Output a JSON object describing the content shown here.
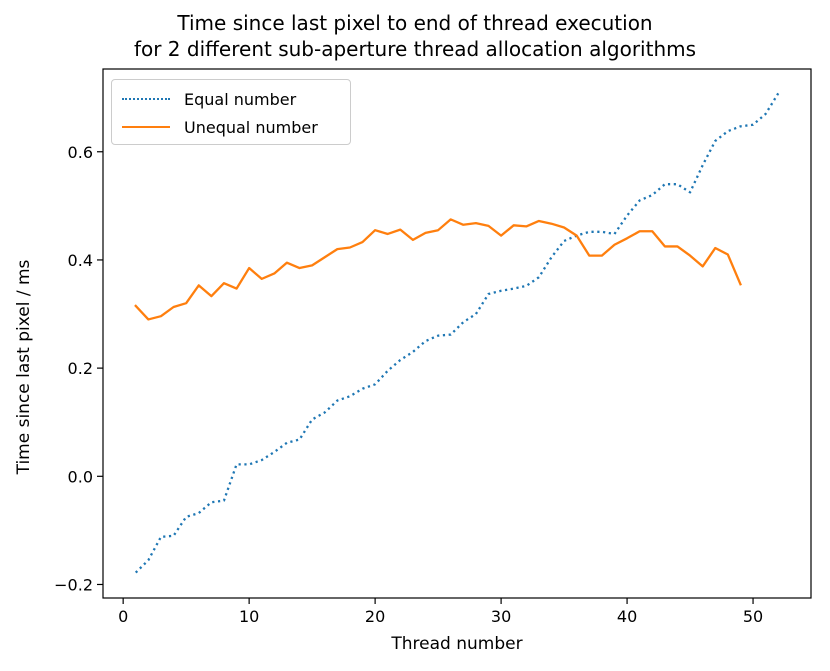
{
  "title_line1": "Time since last pixel to end of thread execution",
  "title_line2": "for 2 different sub-aperture thread allocation algorithms",
  "chart_data": {
    "type": "line",
    "title": "Time since last pixel to end of thread execution\nfor 2 different sub-aperture thread allocation algorithms",
    "xlabel": "Thread number",
    "ylabel": "Time since last pixel / ms",
    "xlim": [
      -1.6,
      54.6
    ],
    "ylim": [
      -0.225,
      0.753
    ],
    "xticks": [
      0,
      10,
      20,
      30,
      40,
      50
    ],
    "xtick_labels": [
      "0",
      "10",
      "20",
      "30",
      "40",
      "50"
    ],
    "yticks": [
      -0.2,
      0.0,
      0.2,
      0.4,
      0.6
    ],
    "ytick_labels": [
      "−0.2",
      "0.0",
      "0.2",
      "0.4",
      "0.6"
    ],
    "grid": false,
    "legend_position": "top-left",
    "series": [
      {
        "name": "Equal number",
        "color": "#1f77b4",
        "style": "dotted",
        "x": [
          1,
          2,
          3,
          4,
          5,
          6,
          7,
          8,
          9,
          10,
          11,
          12,
          13,
          14,
          15,
          16,
          17,
          18,
          19,
          20,
          21,
          22,
          23,
          24,
          25,
          26,
          27,
          28,
          29,
          30,
          31,
          32,
          33,
          34,
          35,
          36,
          37,
          38,
          39,
          40,
          41,
          42,
          43,
          44,
          45,
          46,
          47,
          48,
          49,
          50,
          51,
          52
        ],
        "y": [
          -0.178,
          -0.155,
          -0.112,
          -0.11,
          -0.075,
          -0.068,
          -0.048,
          -0.045,
          0.022,
          0.022,
          0.03,
          0.045,
          0.062,
          0.068,
          0.105,
          0.118,
          0.14,
          0.148,
          0.162,
          0.17,
          0.195,
          0.215,
          0.23,
          0.25,
          0.26,
          0.262,
          0.285,
          0.3,
          0.337,
          0.343,
          0.347,
          0.352,
          0.368,
          0.405,
          0.435,
          0.445,
          0.452,
          0.452,
          0.448,
          0.482,
          0.51,
          0.52,
          0.54,
          0.54,
          0.525,
          0.575,
          0.62,
          0.638,
          0.647,
          0.65,
          0.67,
          0.708
        ]
      },
      {
        "name": "Unequal number",
        "color": "#ff7f0e",
        "style": "solid",
        "x": [
          1,
          2,
          3,
          4,
          5,
          6,
          7,
          8,
          9,
          10,
          11,
          12,
          13,
          14,
          15,
          16,
          17,
          18,
          19,
          20,
          21,
          22,
          23,
          24,
          25,
          26,
          27,
          28,
          29,
          30,
          31,
          32,
          33,
          34,
          35,
          36,
          37,
          38,
          39,
          40,
          41,
          42,
          43,
          44,
          45,
          46,
          47,
          48,
          49
        ],
        "y": [
          0.315,
          0.29,
          0.296,
          0.313,
          0.32,
          0.353,
          0.333,
          0.357,
          0.347,
          0.385,
          0.365,
          0.375,
          0.395,
          0.385,
          0.39,
          0.405,
          0.42,
          0.423,
          0.433,
          0.455,
          0.448,
          0.456,
          0.437,
          0.45,
          0.455,
          0.475,
          0.465,
          0.468,
          0.463,
          0.445,
          0.464,
          0.462,
          0.472,
          0.467,
          0.46,
          0.445,
          0.408,
          0.408,
          0.428,
          0.44,
          0.453,
          0.453,
          0.425,
          0.425,
          0.408,
          0.388,
          0.422,
          0.41,
          0.355
        ]
      }
    ]
  }
}
